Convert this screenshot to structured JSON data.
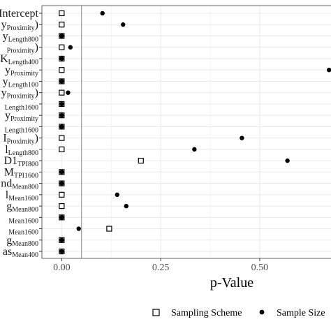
{
  "chart_data": {
    "type": "scatter",
    "title": "",
    "xlabel": "p-Value",
    "ylabel": "",
    "xlim": [
      -0.05,
      0.68
    ],
    "xticks": [
      0.0,
      0.25,
      0.5
    ],
    "xtick_labels": [
      "0.00",
      "0.25",
      "0.50"
    ],
    "reference_line": 0.05,
    "grid": true,
    "legend_position": "bottom",
    "categories": [
      {
        "main": "Intercept",
        "sub": ""
      },
      {
        "main": "y",
        "sub": "Proximity",
        "suffix": ")"
      },
      {
        "main": "y",
        "sub": "Length800"
      },
      {
        "main": "",
        "sub": "Proximity",
        "suffix": ")"
      },
      {
        "main": "K",
        "sub": "Length400"
      },
      {
        "main": "y",
        "sub": "Proximity"
      },
      {
        "main": "y",
        "sub": "Length100"
      },
      {
        "main": "y",
        "sub": "Proximity",
        "suffix": ")"
      },
      {
        "main": "",
        "sub": "Length1600"
      },
      {
        "main": "y",
        "sub": "Proximity"
      },
      {
        "main": "",
        "sub": "Length1600"
      },
      {
        "main": "I",
        "sub": "Proximity",
        "suffix": ")"
      },
      {
        "main": "l",
        "sub": "Length800"
      },
      {
        "main": "D1",
        "sub": "TPI800"
      },
      {
        "main": "M",
        "sub": "TPI1600"
      },
      {
        "main": "nd",
        "sub": "Mean800"
      },
      {
        "main": "l",
        "sub": "Mean1600"
      },
      {
        "main": "g",
        "sub": "Mean800"
      },
      {
        "main": "",
        "sub": "Mean1600"
      },
      {
        "main": "",
        "sub": "Mean1600"
      },
      {
        "main": "g",
        "sub": "Mean800"
      },
      {
        "main": "as",
        "sub": "Mean400"
      }
    ],
    "series": [
      {
        "name": "Sampling Scheme",
        "marker": "open-square",
        "values": [
          0.0,
          0.0,
          0.0,
          0.0,
          0.0,
          0.0,
          0.0,
          0.0,
          0.0,
          0.0,
          0.0,
          0.0,
          0.0,
          0.2,
          0.0,
          0.0,
          0.0,
          0.0,
          0.0,
          0.12,
          0.0,
          0.0
        ]
      },
      {
        "name": "Sample Size",
        "marker": "filled-circle",
        "values": [
          0.103,
          0.155,
          0.0,
          0.022,
          0.0,
          0.675,
          0.0,
          0.016,
          0.0,
          0.0,
          0.0,
          0.455,
          0.335,
          0.57,
          0.0,
          0.0,
          0.14,
          0.163,
          0.0,
          0.043,
          0.0,
          0.0
        ]
      }
    ],
    "colors": {
      "panel_bg": "#ffffff",
      "grid": "#ebebeb",
      "reference_line": "#8c8c8c",
      "points": "#000000",
      "axis_text": "#4d4d4d"
    }
  }
}
